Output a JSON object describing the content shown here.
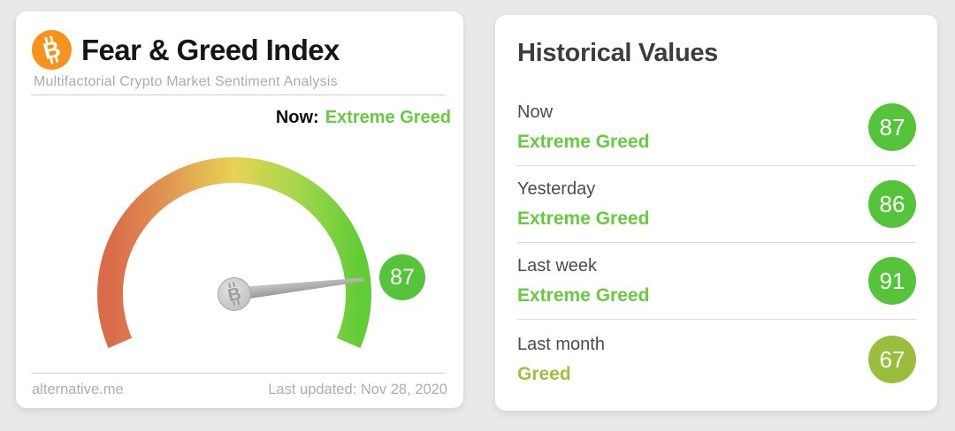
{
  "chart_data": [
    {
      "type": "gauge",
      "title": "Fear & Greed Index",
      "value": 87,
      "min": 0,
      "max": 100,
      "current_label": "Extreme Greed",
      "arc_span_deg": 226.4,
      "arc_gradient": [
        "#d96b4a",
        "#e09a52",
        "#e9d253",
        "#a6d74d",
        "#62cc36"
      ],
      "legend_position": "none"
    },
    {
      "type": "table",
      "title": "Historical Values",
      "categories": [
        "Now",
        "Yesterday",
        "Last week",
        "Last month"
      ],
      "values": [
        87,
        86,
        91,
        67
      ],
      "labels": [
        "Extreme Greed",
        "Extreme Greed",
        "Extreme Greed",
        "Greed"
      ]
    }
  ],
  "gauge_card": {
    "title": "Fear & Greed Index",
    "subtitle": "Multifactorial Crypto Market Sentiment Analysis",
    "now_prefix": "Now:",
    "now_value": "Extreme Greed",
    "now_color": "#68cb3d",
    "bitcoin_glyph": "B",
    "gauge": {
      "value": 87,
      "max": 100,
      "start_deg": 203.2,
      "span_deg": 226.4,
      "badge_color": "#56c43a",
      "arc_colors": [
        "#d96b4a",
        "#e09a52",
        "#e9d253",
        "#a6d74d",
        "#62cc36"
      ]
    },
    "footer": {
      "source": "alternative.me",
      "last_updated": "Last updated: Nov 28, 2020"
    }
  },
  "historical_card": {
    "title": "Historical Values",
    "rows": [
      {
        "label": "Now",
        "sentiment": "Extreme Greed",
        "value": 87,
        "badge_color": "#56c43a",
        "text_color": "#68cb3d"
      },
      {
        "label": "Yesterday",
        "sentiment": "Extreme Greed",
        "value": 86,
        "badge_color": "#56c43a",
        "text_color": "#68cb3d"
      },
      {
        "label": "Last week",
        "sentiment": "Extreme Greed",
        "value": 91,
        "badge_color": "#56c43a",
        "text_color": "#68cb3d"
      },
      {
        "label": "Last month",
        "sentiment": "Greed",
        "value": 67,
        "badge_color": "#9abd3c",
        "text_color": "#9cc23f"
      }
    ]
  },
  "colors": {
    "page_bg": "#e9e9ea",
    "card_bg": "#ffffff",
    "bitcoin_orange": "#f7931a",
    "divider": "#cfcfcf",
    "muted_text": "#acacac",
    "needle_gray": "#a9a9a9"
  }
}
